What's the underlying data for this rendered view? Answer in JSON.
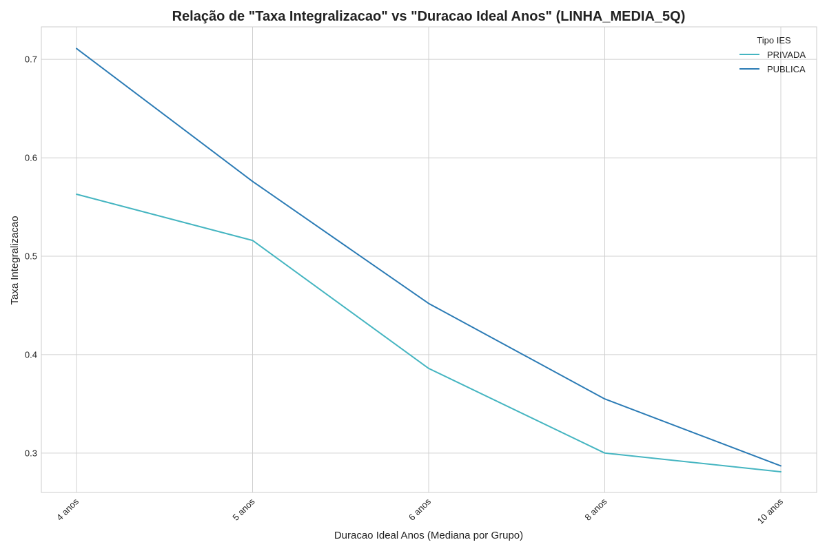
{
  "chart_data": {
    "type": "line",
    "title": "Relação de \"Taxa Integralizacao\" vs \"Duracao Ideal Anos\" (LINHA_MEDIA_5Q)",
    "xlabel": "Duracao Ideal Anos (Mediana por Grupo)",
    "ylabel": "Taxa Integralizacao",
    "categories": [
      "4 anos",
      "5 anos",
      "6 anos",
      "8 anos",
      "10 anos"
    ],
    "ylim": [
      0.26,
      0.733
    ],
    "yticks": [
      0.3,
      0.4,
      0.5,
      0.6,
      0.7
    ],
    "grid": true,
    "legend": {
      "title": "Tipo IES",
      "placement": "top-right"
    },
    "series": [
      {
        "name": "PRIVADA",
        "color": "#45b5c1",
        "values": [
          0.563,
          0.516,
          0.386,
          0.3,
          0.281
        ]
      },
      {
        "name": "PUBLICA",
        "color": "#2b7bb5",
        "values": [
          0.711,
          0.576,
          0.452,
          0.355,
          0.287
        ]
      }
    ]
  }
}
